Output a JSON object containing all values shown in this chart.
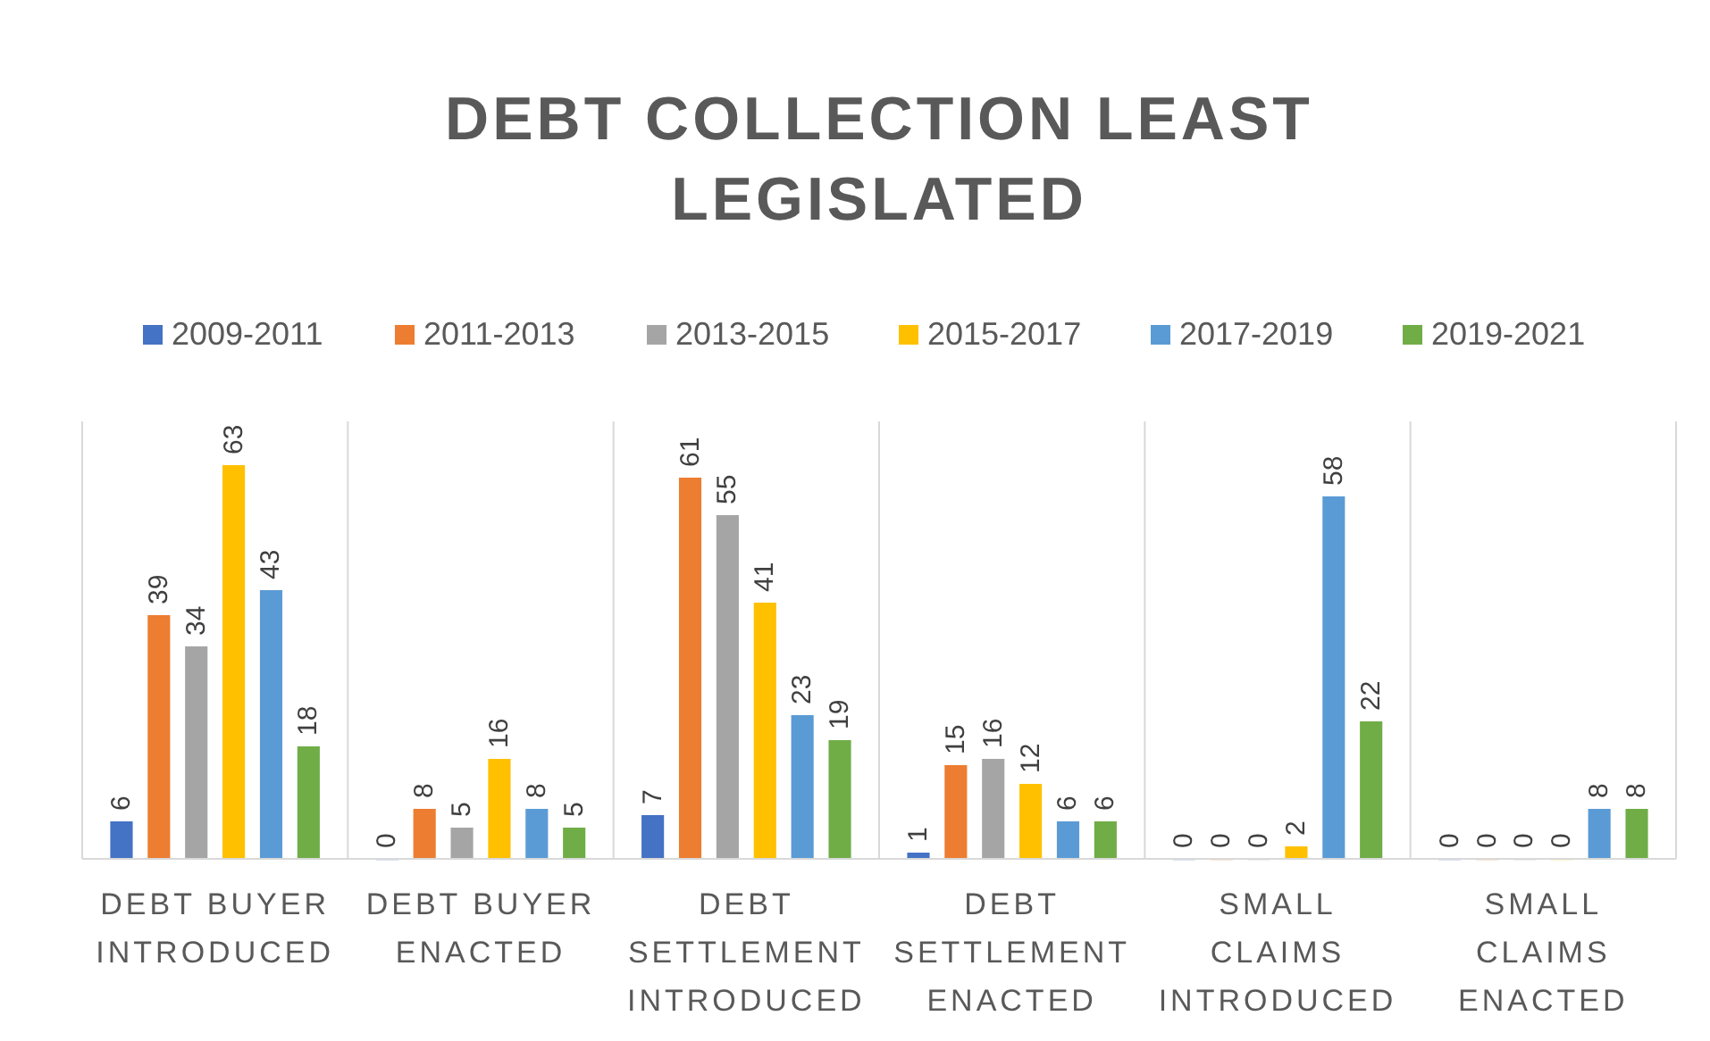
{
  "chart_data": {
    "type": "bar",
    "title": "DEBT COLLECTION LEAST LEGISLATED",
    "categories": [
      "DEBT BUYER INTRODUCED",
      "DEBT BUYER ENACTED",
      "DEBT SETTLEMENT INTRODUCED",
      "DEBT SETTLEMENT ENACTED",
      "SMALL CLAIMS INTRODUCED",
      "SMALL CLAIMS ENACTED"
    ],
    "series": [
      {
        "name": "2009-2011",
        "color": "#4472c4",
        "values": [
          6,
          0,
          7,
          1,
          0,
          0
        ]
      },
      {
        "name": "2011-2013",
        "color": "#ed7d31",
        "values": [
          39,
          8,
          61,
          15,
          0,
          0
        ]
      },
      {
        "name": "2013-2015",
        "color": "#a5a5a5",
        "values": [
          34,
          5,
          55,
          16,
          0,
          0
        ]
      },
      {
        "name": "2015-2017",
        "color": "#ffc000",
        "values": [
          63,
          16,
          41,
          12,
          2,
          0
        ]
      },
      {
        "name": "2017-2019",
        "color": "#5b9bd5",
        "values": [
          43,
          8,
          23,
          6,
          58,
          8
        ]
      },
      {
        "name": "2019-2021",
        "color": "#70ad47",
        "values": [
          18,
          5,
          19,
          6,
          22,
          8
        ]
      }
    ],
    "ylim": [
      0,
      70
    ],
    "tick_labels": "x",
    "grid": "x",
    "legend": "top",
    "data_labels": true
  }
}
